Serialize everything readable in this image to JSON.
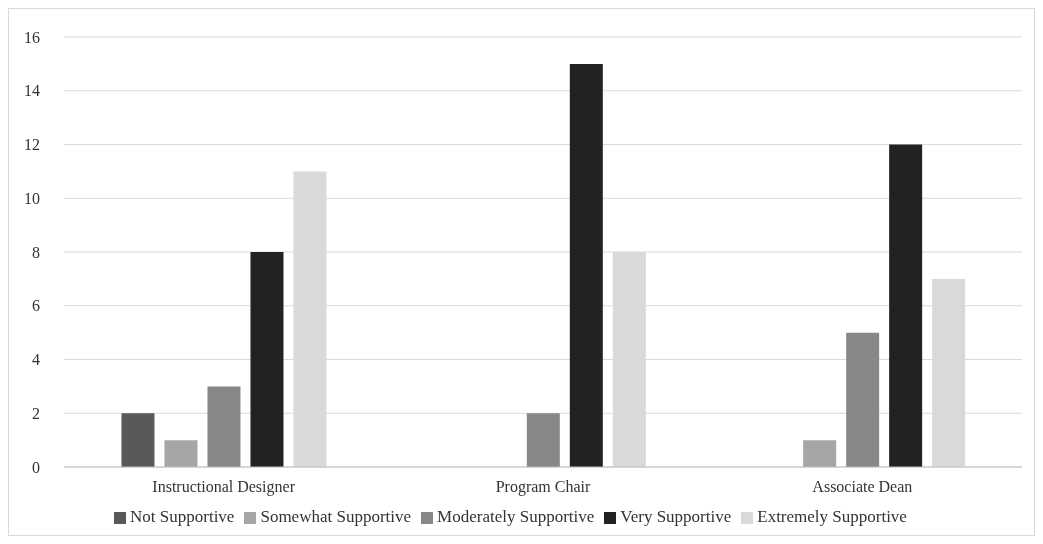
{
  "chart_data": {
    "type": "bar",
    "categories": [
      "Instructional Designer",
      "Program Chair",
      "Associate Dean"
    ],
    "series": [
      {
        "name": "Not Supportive",
        "color": "#595959",
        "values": [
          2,
          0,
          0
        ]
      },
      {
        "name": "Somewhat Supportive",
        "color": "#a6a6a6",
        "values": [
          1,
          0,
          1
        ]
      },
      {
        "name": "Moderately Supportive",
        "color": "#878787",
        "values": [
          3,
          2,
          5
        ]
      },
      {
        "name": "Very Supportive",
        "color": "#222222",
        "values": [
          8,
          15,
          12
        ]
      },
      {
        "name": "Extremely Supportive",
        "color": "#d9d9d9",
        "values": [
          11,
          8,
          7
        ]
      }
    ],
    "ylim": [
      0,
      16
    ],
    "yticks": [
      0,
      2,
      4,
      6,
      8,
      10,
      12,
      14,
      16
    ],
    "grid": "y",
    "legend": "bottom"
  }
}
